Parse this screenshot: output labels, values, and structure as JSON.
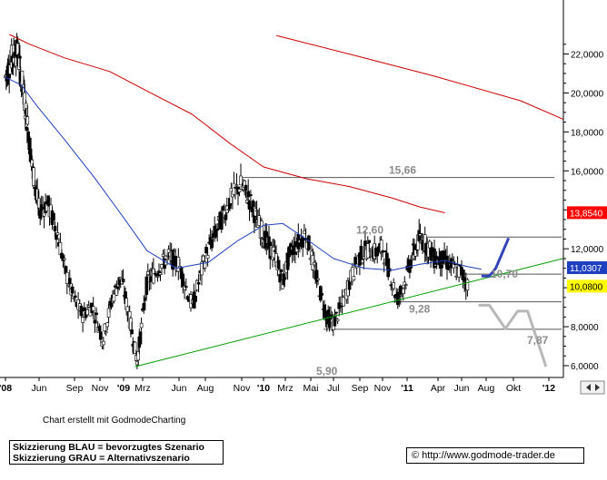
{
  "chart_data": {
    "type": "candlestick",
    "title": "",
    "x_ticks": [
      "'08",
      "Jun",
      "Sep",
      "Nov",
      "'09",
      "Mrz",
      "Jun",
      "Aug",
      "Nov",
      "'10",
      "Mrz",
      "Mai",
      "Jul",
      "Sep",
      "Nov",
      "'11",
      "Apr",
      "Jun",
      "Aug",
      "Okt",
      "'12"
    ],
    "y_ticks": [
      "22,0000",
      "20,0000",
      "18,0000",
      "16,0000",
      "14,0000",
      "12,0000",
      "10,0000",
      "8,0000",
      "6,0000"
    ],
    "ylim": [
      5.8,
      23.0
    ],
    "price_tags": [
      {
        "label": "13,8540",
        "value": 13.854,
        "color": "#ff0000"
      },
      {
        "label": "11,0307",
        "value": 11.0307,
        "color": "#1e3fbf"
      },
      {
        "label": "10,0800",
        "value": 10.08,
        "color": "#ffff00"
      }
    ],
    "levels": [
      {
        "label": "15,66",
        "value": 15.66
      },
      {
        "label": "12,60",
        "value": 12.6
      },
      {
        "label": "10,70",
        "value": 10.7
      },
      {
        "label": "9,28",
        "value": 9.28
      },
      {
        "label": "7,87",
        "value": 7.87
      },
      {
        "label": "5,90",
        "value": 5.9
      }
    ],
    "series": [
      {
        "name": "",
        "kind": "moving-average-long",
        "color": "#cc0000",
        "points": [
          [
            2008.05,
            23.0
          ],
          [
            2008.3,
            22.5
          ],
          [
            2008.6,
            21.8
          ],
          [
            2008.9,
            21.1
          ],
          [
            2009.2,
            20.1
          ],
          [
            2009.5,
            18.9
          ],
          [
            2009.75,
            17.4
          ],
          [
            2010.0,
            16.2
          ],
          [
            2010.3,
            15.6
          ],
          [
            2010.6,
            15.2
          ],
          [
            2010.9,
            14.6
          ],
          [
            2011.1,
            14.15
          ],
          [
            2011.3,
            13.85
          ]
        ]
      },
      {
        "name": "",
        "kind": "moving-average-long-projection",
        "color": "#cc0000",
        "points": [
          [
            2010.1,
            22.95
          ],
          [
            2010.6,
            22.0
          ],
          [
            2011.2,
            20.9
          ],
          [
            2011.8,
            19.6
          ],
          [
            2012.18,
            18.65
          ]
        ]
      },
      {
        "name": "",
        "kind": "moving-average-short",
        "color": "#1e3fbf",
        "points": [
          [
            2008.0,
            20.8
          ],
          [
            2008.2,
            20.4
          ],
          [
            2008.4,
            19.3
          ],
          [
            2008.6,
            17.6
          ],
          [
            2008.8,
            15.6
          ],
          [
            2009.0,
            13.6
          ],
          [
            2009.2,
            11.9
          ],
          [
            2009.4,
            11.0
          ],
          [
            2009.6,
            11.3
          ],
          [
            2009.8,
            12.4
          ],
          [
            2010.0,
            13.2
          ],
          [
            2010.15,
            13.3
          ],
          [
            2010.3,
            12.5
          ],
          [
            2010.5,
            11.5
          ],
          [
            2010.7,
            11.0
          ],
          [
            2010.9,
            10.9
          ],
          [
            2011.1,
            11.2
          ],
          [
            2011.3,
            11.4
          ],
          [
            2011.45,
            11.1
          ],
          [
            2011.55,
            10.95
          ]
        ]
      },
      {
        "name": "",
        "kind": "trendline",
        "color": "#00a000",
        "points": [
          [
            2009.1,
            5.95
          ],
          [
            2012.18,
            11.5
          ]
        ]
      },
      {
        "name": "",
        "kind": "scenario-blue",
        "color": "#3344bb",
        "points": [
          [
            2011.55,
            10.6
          ],
          [
            2011.6,
            10.6
          ],
          [
            2011.64,
            11.0
          ],
          [
            2011.72,
            12.55
          ]
        ]
      },
      {
        "name": "",
        "kind": "scenario-grey",
        "color": "#b8b8b8",
        "points": [
          [
            2011.53,
            9.1
          ],
          [
            2011.6,
            9.1
          ],
          [
            2011.7,
            7.9
          ],
          [
            2011.78,
            8.8
          ],
          [
            2011.85,
            8.8
          ],
          [
            2011.98,
            5.95
          ]
        ]
      }
    ]
  },
  "footer": {
    "credit": "Chart erstellt mit GodmodeCharting",
    "legend": [
      "Skizzierung BLAU = bevorzugtes Szenario",
      "Skizzierung GRAU = Alternativszenario"
    ],
    "url": "© http://www.godmode-trader.de"
  }
}
